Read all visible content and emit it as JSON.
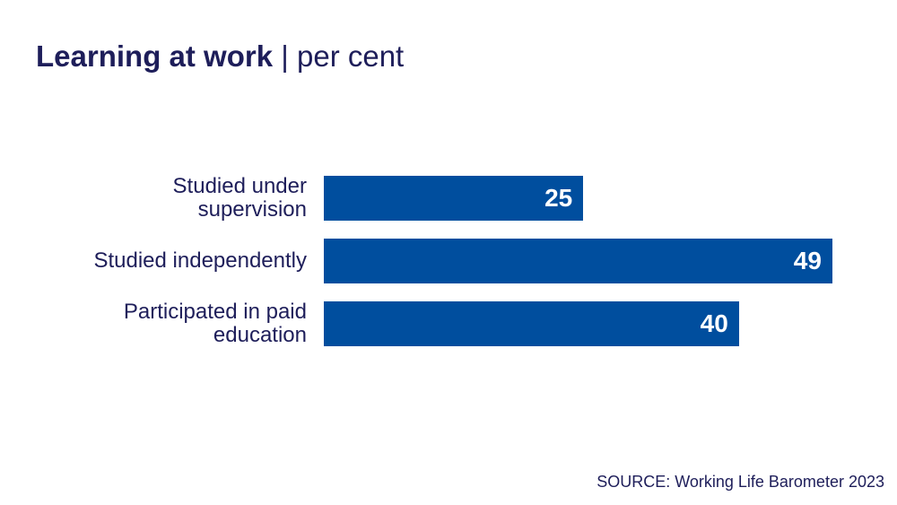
{
  "chart_data": {
    "type": "bar",
    "orientation": "horizontal",
    "title": "Learning at work",
    "subtitle": "per cent",
    "categories": [
      "Studied under supervision",
      "Studied independently",
      "Participated in paid education"
    ],
    "category_lines": [
      [
        "Studied under",
        "supervision"
      ],
      [
        "Studied independently"
      ],
      [
        "Participated in paid",
        "education"
      ]
    ],
    "values": [
      25,
      49,
      40
    ],
    "xlim": [
      0,
      50
    ],
    "grid": false,
    "xlabel": "",
    "ylabel": "",
    "bar_color": "#004e9e",
    "source": "SOURCE: Working Life Barometer 2023"
  }
}
